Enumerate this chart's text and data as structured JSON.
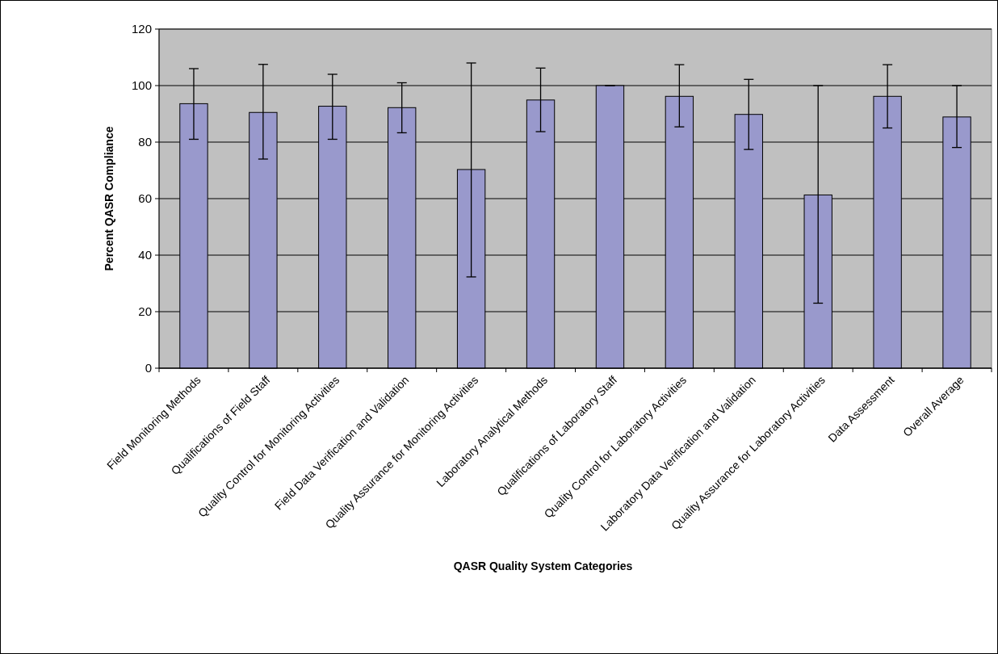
{
  "chart_data": {
    "type": "bar",
    "xlabel": "QASR Quality System Categories",
    "ylabel": "Percent QASR Compliance",
    "categories": [
      "Field Monitoring Methods",
      "Qualifications of Field Staff",
      "Quality Control for Monitoring Activities",
      "Field Data Verification and Validation",
      "Quality Assurance for Monitoring Activities",
      "Laboratory Analytical Methods",
      "Qualifications of Laboratory Staff",
      "Quality Control for Laboratory Activities",
      "Laboratory Data Verification and Validation",
      "Quality Assurance for Laboratory Activities",
      "Data Assessment",
      "Overall Average"
    ],
    "values": [
      93.6,
      90.5,
      92.7,
      92.2,
      70.3,
      94.9,
      100,
      96.2,
      89.8,
      61.3,
      96.2,
      88.9
    ],
    "errors": [
      [
        81,
        106
      ],
      [
        74,
        107.5
      ],
      [
        81,
        104
      ],
      [
        83.3,
        101
      ],
      [
        32.3,
        108
      ],
      [
        83.7,
        106.2
      ],
      [
        100,
        100
      ],
      [
        85.4,
        107.4
      ],
      [
        77.4,
        102.2
      ],
      [
        23,
        100
      ],
      [
        85,
        107.4
      ],
      [
        78.1,
        100
      ]
    ],
    "color": "#9999cc",
    "ylim": [
      0,
      120
    ],
    "yticks": [
      0,
      20,
      40,
      60,
      80,
      100,
      120
    ],
    "grid": "y"
  }
}
